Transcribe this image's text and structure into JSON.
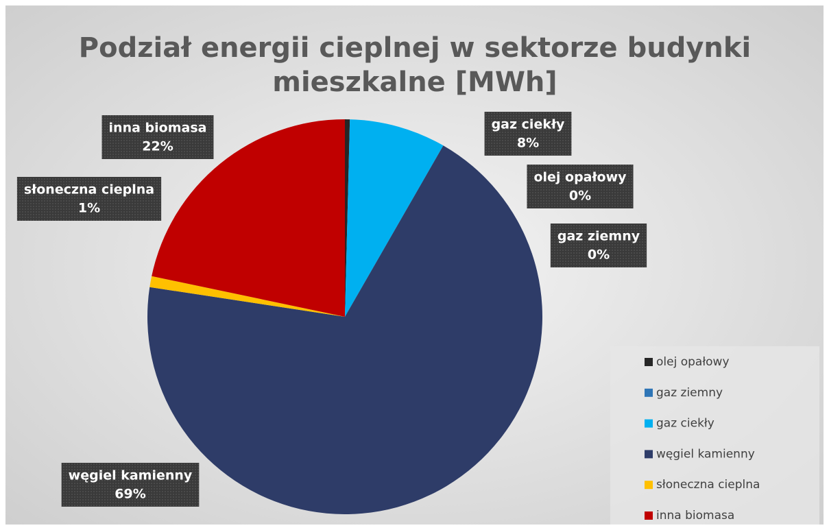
{
  "chart_data": {
    "type": "pie",
    "title": "Podział energii cieplnej w sektorze budynki mieszkalne [MWh]",
    "title_lines": [
      "Podział energii cieplnej w sektorze budynki",
      "mieszkalne [MWh]"
    ],
    "categories": [
      "olej opałowy",
      "gaz ziemny",
      "gaz ciekły",
      "węgiel kamienny",
      "słoneczna cieplna",
      "inna biomasa"
    ],
    "values": [
      0.4,
      0,
      7.9,
      69.1,
      0.9,
      21.7
    ],
    "value_labels": [
      "0%",
      "0%",
      "8%",
      "69%",
      "1%",
      "22%"
    ],
    "colors": [
      "#262626",
      "#2e75b6",
      "#00b0f0",
      "#2e3c68",
      "#ffc000",
      "#c00000"
    ],
    "legend": "right"
  }
}
